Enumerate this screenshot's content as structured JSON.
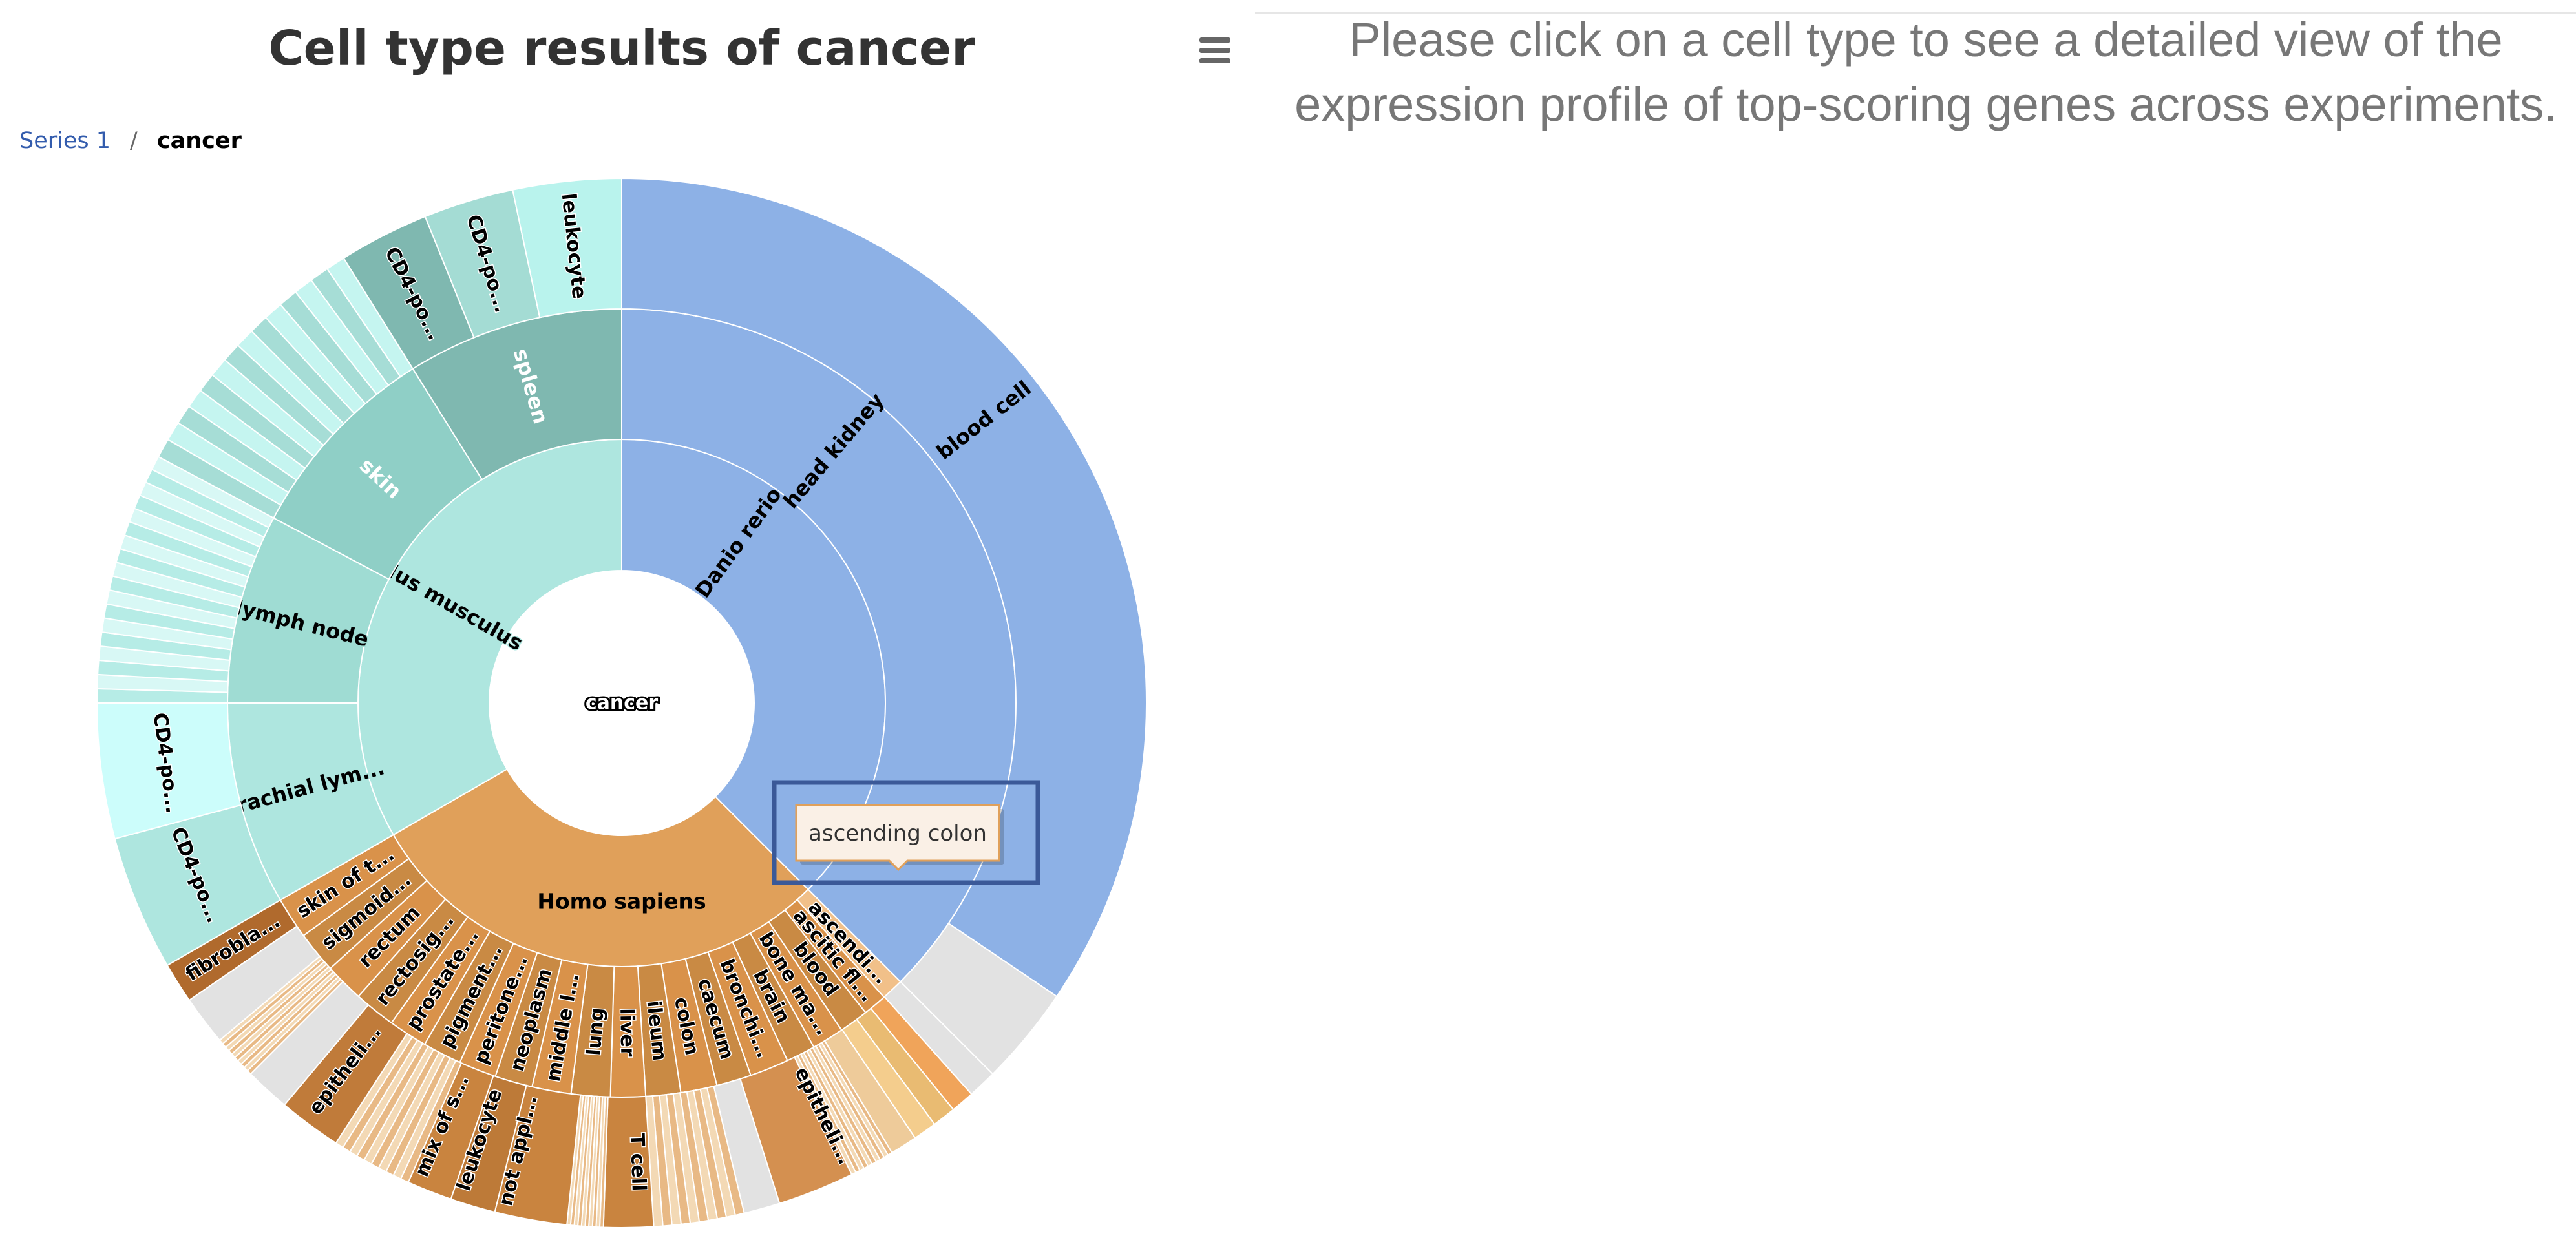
{
  "chart": {
    "title": "Cell type results of cancer",
    "menu_icon": "hamburger-menu-icon",
    "breadcrumb": {
      "root": "Series 1",
      "separator": "/",
      "current": "cancer"
    },
    "tooltip": "ascending colon"
  },
  "info_panel": {
    "message": "Please click on a cell type to see a detailed view of the expression profile of top-scoring genes across experiments."
  },
  "colors": {
    "danio": "#8db1e6",
    "mus_base": "#aee6df",
    "homo_base": "#e0a05a",
    "grey": "#e2e2e2",
    "highlight": "#3b5998"
  },
  "chart_data": {
    "type": "sunburst",
    "root": "cancer",
    "children": [
      {
        "name": "Danio rerio",
        "children": [
          {
            "name": "head kidney",
            "children": [
              {
                "name": "blood cell"
              }
            ]
          }
        ]
      },
      {
        "name": "Homo sapiens",
        "children": [
          {
            "name": "ascendi..."
          },
          {
            "name": "ascitic fl..."
          },
          {
            "name": "blood"
          },
          {
            "name": "bone ma..."
          },
          {
            "name": "brain"
          },
          {
            "name": "bronchi..."
          },
          {
            "name": "caecum"
          },
          {
            "name": "colon"
          },
          {
            "name": "ileum"
          },
          {
            "name": "liver"
          },
          {
            "name": "lung"
          },
          {
            "name": "middle l..."
          },
          {
            "name": "neoplasm"
          },
          {
            "name": "peritone..."
          },
          {
            "name": "pigment..."
          },
          {
            "name": "prostate..."
          },
          {
            "name": "rectosig..."
          },
          {
            "name": "rectum"
          },
          {
            "name": "sigmoid..."
          },
          {
            "name": "skin of t..."
          }
        ]
      },
      {
        "name": "Mus musculus",
        "children": [
          {
            "name": "brachial lym...",
            "children": [
              {
                "name": "CD4-po..."
              },
              {
                "name": "CD4-po..."
              }
            ]
          },
          {
            "name": "lymph node"
          },
          {
            "name": "skin"
          },
          {
            "name": "spleen",
            "children": [
              {
                "name": "leukocyte"
              },
              {
                "name": "CD4-po..."
              },
              {
                "name": "CD4-po..."
              }
            ]
          }
        ]
      }
    ],
    "outer_ring_labels": [
      "fibrobla...",
      "epitheli...",
      "mix of s...",
      "leukocyte",
      "not appl...",
      "T cell",
      "epitheli..."
    ]
  }
}
